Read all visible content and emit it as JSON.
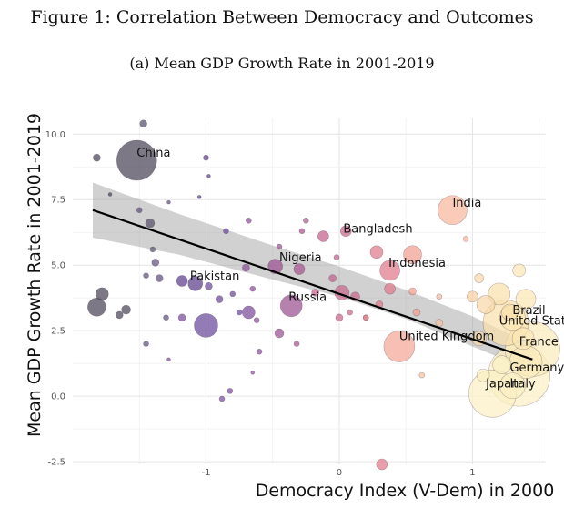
{
  "figure": {
    "title": "Figure 1: Correlation Between Democracy and Outcomes",
    "subtitle": "(a) Mean GDP Growth Rate in 2001-2019"
  },
  "chart_data": {
    "type": "scatter",
    "title": "(a) Mean GDP Growth Rate in 2001-2019",
    "xlabel": "Democracy Index (V-Dem) in 2000",
    "ylabel": "Mean GDP Growth Rate in 2001-2019",
    "xlim": [
      -2.0,
      1.55
    ],
    "ylim": [
      -2.6,
      10.6
    ],
    "x_ticks": [
      -1,
      0,
      1
    ],
    "x_tick_labels": [
      "-1",
      "0",
      "1"
    ],
    "y_ticks": [
      -2.5,
      0.0,
      2.5,
      5.0,
      7.5,
      10.0
    ],
    "y_tick_labels": [
      "-2.5",
      "0.0",
      "2.5",
      "5.0",
      "7.5",
      "10.0"
    ],
    "grid": true,
    "legend": "none",
    "trend_line": {
      "x": [
        -1.85,
        1.45
      ],
      "y": [
        7.1,
        1.4
      ]
    },
    "confidence_band": {
      "x": [
        -1.85,
        -1.2,
        -0.5,
        0.0,
        0.5,
        1.0,
        1.45
      ],
      "lower": [
        6.05,
        5.4,
        4.45,
        3.8,
        2.95,
        1.9,
        0.95
      ],
      "upper": [
        8.15,
        6.95,
        5.75,
        4.95,
        4.05,
        3.05,
        1.95
      ]
    },
    "labels": [
      {
        "text": "China",
        "x": -1.52,
        "y": 9.0
      },
      {
        "text": "India",
        "x": 0.85,
        "y": 7.1
      },
      {
        "text": "Bangladesh",
        "x": 0.03,
        "y": 6.1
      },
      {
        "text": "Nigeria",
        "x": -0.45,
        "y": 5.0
      },
      {
        "text": "Pakistan",
        "x": -1.12,
        "y": 4.3
      },
      {
        "text": "Indonesia",
        "x": 0.37,
        "y": 4.8
      },
      {
        "text": "Russia",
        "x": -0.38,
        "y": 3.5
      },
      {
        "text": "United States",
        "x": 1.2,
        "y": 2.6
      },
      {
        "text": "Brazil",
        "x": 1.3,
        "y": 3.0
      },
      {
        "text": "United Kingdom",
        "x": 0.45,
        "y": 2.0
      },
      {
        "text": "France",
        "x": 1.35,
        "y": 1.8
      },
      {
        "text": "Germany",
        "x": 1.28,
        "y": 0.8
      },
      {
        "text": "Japan",
        "x": 1.1,
        "y": 0.2
      },
      {
        "text": "Italy",
        "x": 1.28,
        "y": 0.2
      }
    ],
    "points": [
      {
        "x": -1.52,
        "y": 9.0,
        "s": 22,
        "c": "#4a4458"
      },
      {
        "x": -1.47,
        "y": 10.4,
        "s": 4,
        "c": "#575068"
      },
      {
        "x": -1.82,
        "y": 9.1,
        "s": 4,
        "c": "#4a4458"
      },
      {
        "x": -1.72,
        "y": 7.7,
        "s": 2,
        "c": "#4a4458"
      },
      {
        "x": -1.78,
        "y": 3.9,
        "s": 7,
        "c": "#4a4458"
      },
      {
        "x": -1.82,
        "y": 3.4,
        "s": 10,
        "c": "#4a4458"
      },
      {
        "x": -1.65,
        "y": 3.1,
        "s": 4,
        "c": "#4a4458"
      },
      {
        "x": -1.6,
        "y": 3.3,
        "s": 5,
        "c": "#4a4458"
      },
      {
        "x": -1.42,
        "y": 6.6,
        "s": 5,
        "c": "#575068"
      },
      {
        "x": -1.4,
        "y": 5.6,
        "s": 3,
        "c": "#575068"
      },
      {
        "x": -1.38,
        "y": 5.1,
        "s": 4,
        "c": "#5e507a"
      },
      {
        "x": -1.35,
        "y": 4.5,
        "s": 4,
        "c": "#5e507a"
      },
      {
        "x": -1.45,
        "y": 4.6,
        "s": 3,
        "c": "#5e507a"
      },
      {
        "x": -1.3,
        "y": 3.0,
        "s": 3,
        "c": "#5e507a"
      },
      {
        "x": -1.45,
        "y": 2.0,
        "s": 3,
        "c": "#5e507a"
      },
      {
        "x": -1.5,
        "y": 7.1,
        "s": 3,
        "c": "#5e507a"
      },
      {
        "x": -1.28,
        "y": 7.4,
        "s": 2,
        "c": "#5e507a"
      },
      {
        "x": -1.18,
        "y": 4.4,
        "s": 6,
        "c": "#5a3d8a"
      },
      {
        "x": -1.08,
        "y": 4.3,
        "s": 8,
        "c": "#5a3d8a"
      },
      {
        "x": -1.0,
        "y": 9.1,
        "s": 3,
        "c": "#5a3d8a"
      },
      {
        "x": -0.98,
        "y": 8.4,
        "s": 2,
        "c": "#5a3d8a"
      },
      {
        "x": -1.05,
        "y": 7.6,
        "s": 2,
        "c": "#5a3d8a"
      },
      {
        "x": -0.85,
        "y": 6.3,
        "s": 3,
        "c": "#6a4a9a"
      },
      {
        "x": -0.98,
        "y": 4.2,
        "s": 4,
        "c": "#6a4a9a"
      },
      {
        "x": -1.0,
        "y": 2.7,
        "s": 13,
        "c": "#6a4a9a"
      },
      {
        "x": -0.9,
        "y": 3.7,
        "s": 4,
        "c": "#6a4a9a"
      },
      {
        "x": -0.8,
        "y": 3.9,
        "s": 3,
        "c": "#6a4a9a"
      },
      {
        "x": -0.75,
        "y": 3.2,
        "s": 3,
        "c": "#6a4a9a"
      },
      {
        "x": -0.88,
        "y": -0.1,
        "s": 3,
        "c": "#7a4a9a"
      },
      {
        "x": -0.82,
        "y": 0.2,
        "s": 3,
        "c": "#7a4a9a"
      },
      {
        "x": -1.18,
        "y": 3.0,
        "s": 4,
        "c": "#7a4a9a"
      },
      {
        "x": -1.28,
        "y": 1.4,
        "s": 2,
        "c": "#7a4a9a"
      },
      {
        "x": -0.68,
        "y": 3.2,
        "s": 7,
        "c": "#7a4a9a"
      },
      {
        "x": -0.7,
        "y": 4.9,
        "s": 4,
        "c": "#8a4e98"
      },
      {
        "x": -0.68,
        "y": 6.7,
        "s": 3,
        "c": "#8a4e98"
      },
      {
        "x": -0.62,
        "y": 2.9,
        "s": 3,
        "c": "#8a4e98"
      },
      {
        "x": -0.65,
        "y": 4.1,
        "s": 3,
        "c": "#8a4e98"
      },
      {
        "x": -0.6,
        "y": 1.7,
        "s": 3,
        "c": "#8a4e98"
      },
      {
        "x": -0.65,
        "y": 0.9,
        "s": 2,
        "c": "#8a4e98"
      },
      {
        "x": -0.48,
        "y": 4.95,
        "s": 8,
        "c": "#9a5090"
      },
      {
        "x": -0.45,
        "y": 5.7,
        "s": 3,
        "c": "#9a5090"
      },
      {
        "x": -0.45,
        "y": 2.4,
        "s": 5,
        "c": "#9a5090"
      },
      {
        "x": -0.36,
        "y": 3.45,
        "s": 12,
        "c": "#9a5090"
      },
      {
        "x": -0.3,
        "y": 4.85,
        "s": 6,
        "c": "#a55590"
      },
      {
        "x": -0.28,
        "y": 6.3,
        "s": 3,
        "c": "#a55590"
      },
      {
        "x": -0.32,
        "y": 2.0,
        "s": 3,
        "c": "#a55590"
      },
      {
        "x": -0.25,
        "y": 6.7,
        "s": 3,
        "c": "#b06090"
      },
      {
        "x": -0.12,
        "y": 6.1,
        "s": 6,
        "c": "#c0608c"
      },
      {
        "x": -0.18,
        "y": 3.95,
        "s": 4,
        "c": "#c0608c"
      },
      {
        "x": -0.05,
        "y": 4.5,
        "s": 4,
        "c": "#c0608c"
      },
      {
        "x": -0.02,
        "y": 5.3,
        "s": 3,
        "c": "#c0608c"
      },
      {
        "x": 0.02,
        "y": 3.95,
        "s": 8,
        "c": "#c8688a"
      },
      {
        "x": 0.05,
        "y": 6.3,
        "s": 6,
        "c": "#c8688a"
      },
      {
        "x": 0.12,
        "y": 3.8,
        "s": 5,
        "c": "#c8688a"
      },
      {
        "x": 0.0,
        "y": 3.0,
        "s": 4,
        "c": "#c8688a"
      },
      {
        "x": 0.08,
        "y": 3.2,
        "s": 3,
        "c": "#c8688a"
      },
      {
        "x": 0.2,
        "y": 3.0,
        "s": 3,
        "c": "#d06a88"
      },
      {
        "x": 0.28,
        "y": 5.5,
        "s": 7,
        "c": "#e07a8a"
      },
      {
        "x": 0.38,
        "y": 4.8,
        "s": 11,
        "c": "#e07a8a"
      },
      {
        "x": 0.38,
        "y": 4.1,
        "s": 6,
        "c": "#e07a8a"
      },
      {
        "x": 0.3,
        "y": 3.5,
        "s": 4,
        "c": "#e07a8a"
      },
      {
        "x": 0.2,
        "y": 3.0,
        "s": 3,
        "c": "#e08a88"
      },
      {
        "x": 0.55,
        "y": 5.4,
        "s": 10,
        "c": "#f0a090"
      },
      {
        "x": 0.55,
        "y": 4.0,
        "s": 4,
        "c": "#f0a090"
      },
      {
        "x": 0.58,
        "y": 3.2,
        "s": 4,
        "c": "#f0a090"
      },
      {
        "x": 0.45,
        "y": 1.9,
        "s": 17,
        "c": "#f3a898"
      },
      {
        "x": 0.85,
        "y": 7.1,
        "s": 16,
        "c": "#f7b79c"
      },
      {
        "x": 0.95,
        "y": 6.0,
        "s": 3,
        "c": "#f7b79c"
      },
      {
        "x": 0.75,
        "y": 3.8,
        "s": 3,
        "c": "#f7b79c"
      },
      {
        "x": 0.75,
        "y": 2.8,
        "s": 4,
        "c": "#f7c0a0"
      },
      {
        "x": 0.62,
        "y": 0.8,
        "s": 3,
        "c": "#f7c0a0"
      },
      {
        "x": 0.32,
        "y": -2.6,
        "s": 6,
        "c": "#e07a8a"
      },
      {
        "x": 1.0,
        "y": 3.8,
        "s": 6,
        "c": "#f7d0a0"
      },
      {
        "x": 1.05,
        "y": 4.5,
        "s": 5,
        "c": "#f8d8a8"
      },
      {
        "x": 1.1,
        "y": 3.5,
        "s": 10,
        "c": "#f8d8a8"
      },
      {
        "x": 1.2,
        "y": 3.9,
        "s": 12,
        "c": "#f9e0ac"
      },
      {
        "x": 1.25,
        "y": 2.8,
        "s": 25,
        "c": "#f9e0ac"
      },
      {
        "x": 1.28,
        "y": 3.2,
        "s": 9,
        "c": "#f9e0ac"
      },
      {
        "x": 1.35,
        "y": 4.8,
        "s": 7,
        "c": "#fae8b4"
      },
      {
        "x": 1.4,
        "y": 3.7,
        "s": 11,
        "c": "#fae8b4"
      },
      {
        "x": 1.3,
        "y": 3.0,
        "s": 14,
        "c": "#fae8b4"
      },
      {
        "x": 1.38,
        "y": 2.2,
        "s": 12,
        "c": "#fae8b4"
      },
      {
        "x": 1.45,
        "y": 1.8,
        "s": 30,
        "c": "#faecbc"
      },
      {
        "x": 1.4,
        "y": 1.3,
        "s": 18,
        "c": "#faecbc"
      },
      {
        "x": 1.35,
        "y": 0.8,
        "s": 34,
        "c": "#fbf0c4"
      },
      {
        "x": 1.3,
        "y": 0.4,
        "s": 14,
        "c": "#fbf0c4"
      },
      {
        "x": 1.22,
        "y": 1.2,
        "s": 10,
        "c": "#fbf0c4"
      },
      {
        "x": 1.15,
        "y": 0.1,
        "s": 26,
        "c": "#fbf0c4"
      },
      {
        "x": 1.08,
        "y": 0.8,
        "s": 7,
        "c": "#fbf0c4"
      },
      {
        "x": 1.05,
        "y": 2.2,
        "s": 8,
        "c": "#f8d8a8"
      }
    ]
  }
}
